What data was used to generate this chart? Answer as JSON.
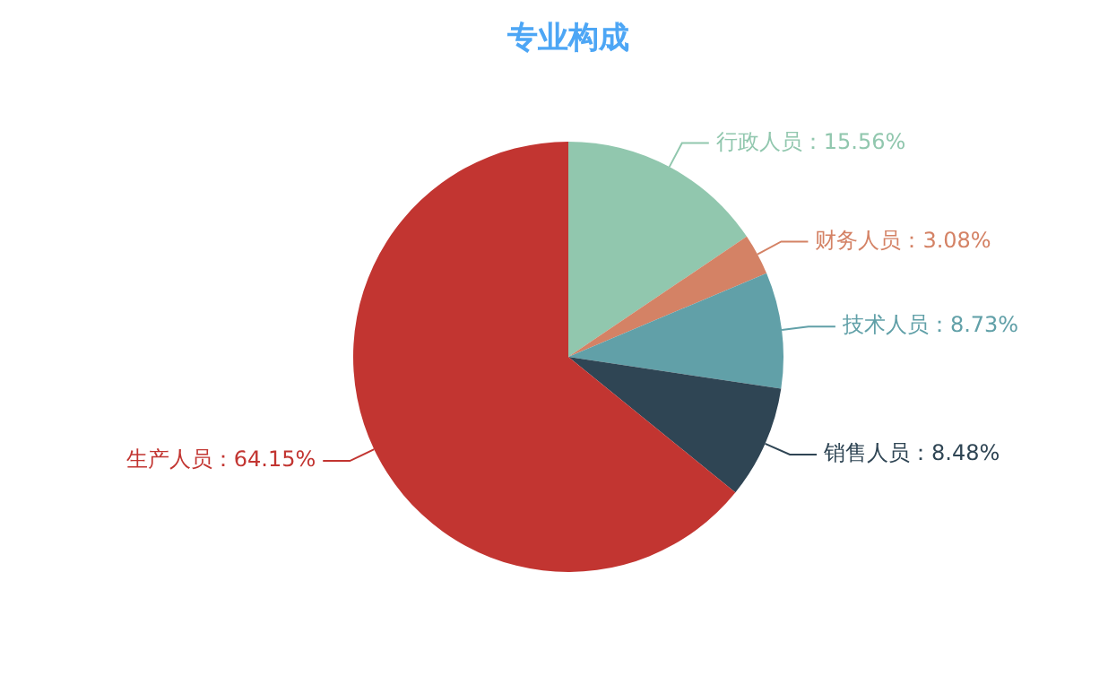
{
  "chart_data": {
    "type": "pie",
    "title": "专业构成",
    "categories": [
      "行政人员",
      "财务人员",
      "技术人员",
      "销售人员",
      "生产人员"
    ],
    "values": [
      15.56,
      3.08,
      8.73,
      8.48,
      64.15
    ],
    "value_labels": [
      "15.56%",
      "3.08%",
      "8.73%",
      "8.48%",
      "64.15%"
    ],
    "colors": [
      "#91c7ae",
      "#d48265",
      "#61a0a8",
      "#2f4554",
      "#c23531"
    ],
    "legend": false
  }
}
